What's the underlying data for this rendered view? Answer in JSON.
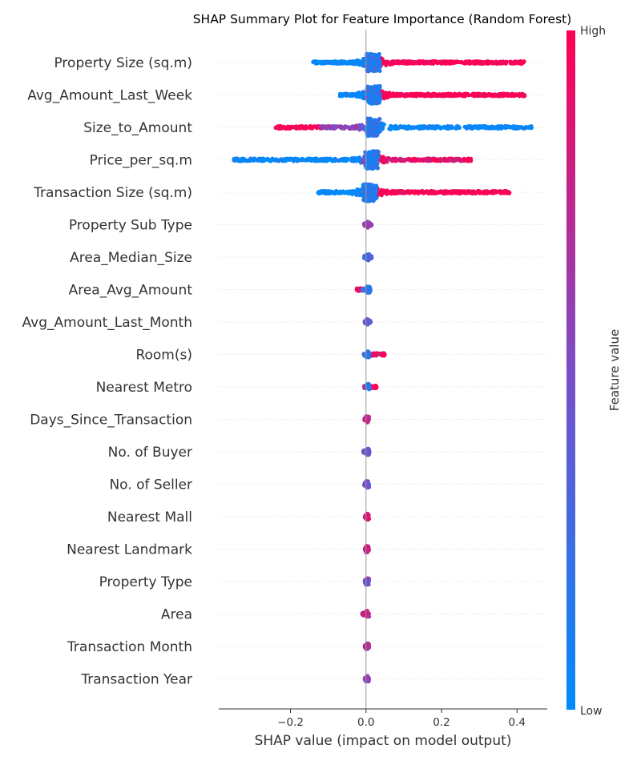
{
  "chart_data": {
    "type": "scatter",
    "subtype": "shap-beeswarm",
    "title": "SHAP Summary Plot for Feature Importance (Random Forest)",
    "xlabel": "SHAP value (impact on model output)",
    "xlim": [
      -0.39,
      0.48
    ],
    "xticks": [
      {
        "value": -0.2,
        "label": "−0.2"
      },
      {
        "value": 0.0,
        "label": "0.0"
      },
      {
        "value": 0.2,
        "label": "0.2"
      },
      {
        "value": 0.4,
        "label": "0.4"
      }
    ],
    "colorbar": {
      "label": "Feature value",
      "high_label": "High",
      "low_label": "Low",
      "low_color": "#008bfb",
      "mid_color": "#7a4ec7",
      "high_color": "#ff0052"
    },
    "grid": false,
    "features": [
      {
        "name": "Property Size (sq.m)",
        "min": -0.14,
        "max": 0.42,
        "core": 0.02,
        "high_side": "positive",
        "segments": [
          [
            -0.14,
            0.0,
            0.0
          ],
          [
            0.0,
            0.02,
            0.5
          ],
          [
            0.02,
            0.42,
            1.0
          ]
        ]
      },
      {
        "name": "Avg_Amount_Last_Week",
        "min": -0.07,
        "max": 0.42,
        "core": 0.02,
        "high_side": "positive",
        "segments": [
          [
            -0.07,
            0.0,
            0.0
          ],
          [
            0.0,
            0.02,
            0.5
          ],
          [
            0.02,
            0.42,
            1.0
          ]
        ]
      },
      {
        "name": "Size_to_Amount",
        "min": -0.24,
        "max": 0.44,
        "core": 0.02,
        "high_side": "negative",
        "segments": [
          [
            -0.24,
            -0.12,
            1.0
          ],
          [
            -0.12,
            -0.02,
            0.6
          ],
          [
            -0.02,
            0.0,
            0.4
          ],
          [
            0.0,
            0.44,
            0.0
          ]
        ]
      },
      {
        "name": "Price_per_sq.m",
        "min": -0.35,
        "max": 0.28,
        "core": 0.015,
        "high_side": "positive",
        "segments": [
          [
            -0.35,
            -0.01,
            0.0
          ],
          [
            -0.01,
            0.02,
            0.5
          ],
          [
            0.02,
            0.28,
            0.9
          ]
        ]
      },
      {
        "name": "Transaction Size (sq.m)",
        "min": -0.13,
        "max": 0.38,
        "core": 0.01,
        "high_side": "positive",
        "segments": [
          [
            -0.13,
            0.0,
            0.0
          ],
          [
            0.0,
            0.01,
            0.5
          ],
          [
            0.01,
            0.38,
            1.0
          ]
        ]
      },
      {
        "name": "Property Sub Type",
        "min": -0.005,
        "max": 0.015,
        "core": 0.005,
        "high_side": "mixed",
        "segments": [
          [
            -0.005,
            0.015,
            0.6
          ]
        ]
      },
      {
        "name": "Area_Median_Size",
        "min": -0.005,
        "max": 0.015,
        "core": 0.005,
        "high_side": "mixed",
        "segments": [
          [
            -0.005,
            0.015,
            0.3
          ]
        ]
      },
      {
        "name": "Area_Avg_Amount",
        "min": -0.025,
        "max": 0.012,
        "core": 0.006,
        "high_side": "negative",
        "segments": [
          [
            -0.025,
            -0.01,
            1.0
          ],
          [
            -0.01,
            0.012,
            0.3
          ]
        ]
      },
      {
        "name": "Avg_Amount_Last_Month",
        "min": -0.004,
        "max": 0.012,
        "core": 0.004,
        "high_side": "mixed",
        "segments": [
          [
            -0.004,
            0.012,
            0.4
          ]
        ]
      },
      {
        "name": "Room(s)",
        "min": -0.006,
        "max": 0.05,
        "core": 0.005,
        "high_side": "positive",
        "segments": [
          [
            -0.006,
            0.01,
            0.35
          ],
          [
            0.01,
            0.05,
            0.95
          ]
        ]
      },
      {
        "name": "Nearest Metro",
        "min": -0.006,
        "max": 0.028,
        "core": 0.006,
        "high_side": "positive",
        "segments": [
          [
            -0.006,
            0.01,
            0.7
          ],
          [
            0.01,
            0.028,
            1.0
          ]
        ]
      },
      {
        "name": "Days_Since_Transaction",
        "min": -0.004,
        "max": 0.006,
        "core": 0.004,
        "high_side": "mixed",
        "segments": [
          [
            -0.004,
            0.006,
            0.75
          ]
        ]
      },
      {
        "name": "No. of Buyer",
        "min": -0.007,
        "max": 0.009,
        "core": 0.004,
        "high_side": "mixed",
        "segments": [
          [
            -0.007,
            0.009,
            0.45
          ]
        ]
      },
      {
        "name": "No. of Seller",
        "min": -0.005,
        "max": 0.006,
        "core": 0.004,
        "high_side": "mixed",
        "segments": [
          [
            -0.005,
            0.006,
            0.45
          ]
        ]
      },
      {
        "name": "Nearest Mall",
        "min": -0.003,
        "max": 0.004,
        "core": 0.004,
        "high_side": "mixed",
        "segments": [
          [
            -0.003,
            0.004,
            0.85
          ]
        ]
      },
      {
        "name": "Nearest Landmark",
        "min": -0.003,
        "max": 0.004,
        "core": 0.004,
        "high_side": "mixed",
        "segments": [
          [
            -0.003,
            0.004,
            0.8
          ]
        ]
      },
      {
        "name": "Property Type",
        "min": -0.003,
        "max": 0.005,
        "core": 0.004,
        "high_side": "mixed",
        "segments": [
          [
            -0.003,
            0.005,
            0.5
          ]
        ]
      },
      {
        "name": "Area",
        "min": -0.01,
        "max": 0.006,
        "core": 0.004,
        "high_side": "mixed",
        "segments": [
          [
            -0.01,
            0.006,
            0.75
          ]
        ]
      },
      {
        "name": "Transaction Month",
        "min": -0.003,
        "max": 0.004,
        "core": 0.004,
        "high_side": "mixed",
        "segments": [
          [
            -0.003,
            0.004,
            0.7
          ]
        ]
      },
      {
        "name": "Transaction Year",
        "min": -0.003,
        "max": 0.004,
        "core": 0.004,
        "high_side": "mixed",
        "segments": [
          [
            -0.003,
            0.004,
            0.55
          ]
        ]
      }
    ]
  }
}
